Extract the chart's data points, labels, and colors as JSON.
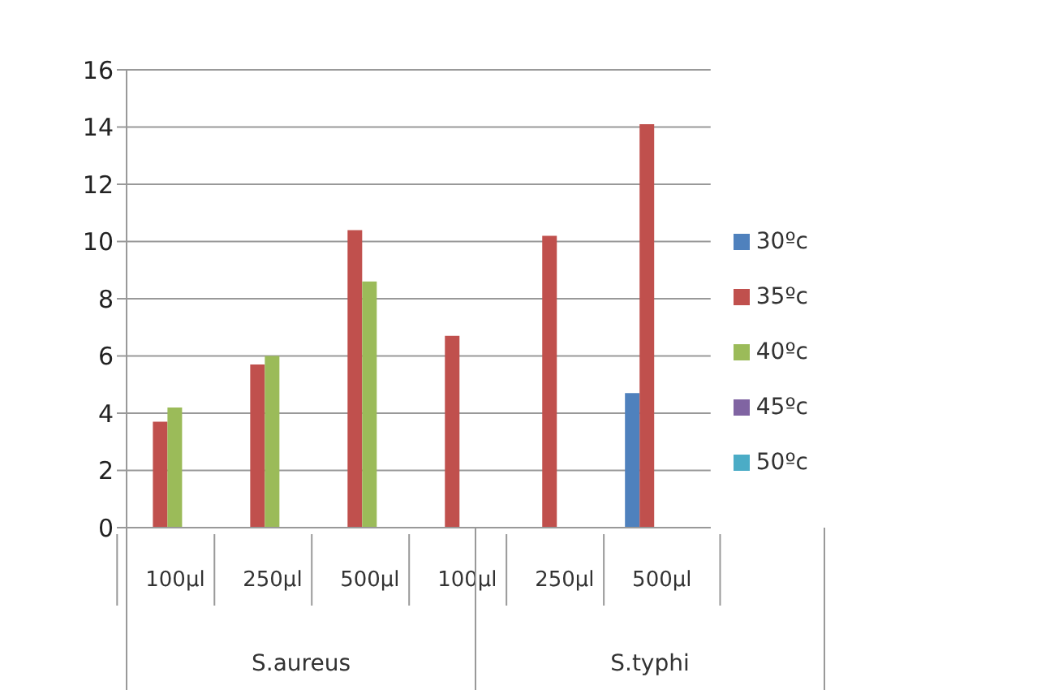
{
  "chart_data": {
    "type": "bar",
    "categories": [
      "100µl",
      "250µl",
      "500µl",
      "100µl",
      "250µl",
      "500µl"
    ],
    "series": [
      {
        "name": "30ºc",
        "color": "#4f81bd",
        "values": [
          null,
          null,
          null,
          null,
          null,
          4.7
        ]
      },
      {
        "name": "35ºc",
        "color": "#c0504d",
        "values": [
          3.7,
          5.7,
          10.4,
          6.7,
          10.2,
          14.1
        ]
      },
      {
        "name": "40ºc",
        "color": "#9bbb59",
        "values": [
          4.2,
          6.0,
          8.6,
          null,
          null,
          null
        ]
      },
      {
        "name": "45ºc",
        "color": "#8064a2",
        "values": [
          null,
          null,
          null,
          null,
          null,
          null
        ]
      },
      {
        "name": "50ºc",
        "color": "#4bacc6",
        "values": [
          null,
          null,
          null,
          null,
          null,
          null
        ]
      }
    ],
    "annotations": [
      "S.aureus",
      "S.typhi"
    ],
    "ylim": [
      0,
      16
    ],
    "yticks": [
      0,
      2,
      4,
      6,
      8,
      10,
      12,
      14,
      16
    ],
    "grid": "y",
    "legend": "right"
  }
}
